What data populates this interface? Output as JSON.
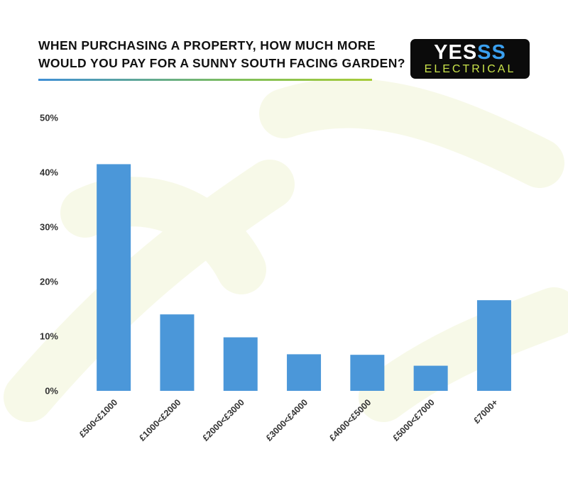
{
  "header": {
    "title": "WHEN PURCHASING A PROPERTY, HOW MUCH MORE WOULD YOU PAY FOR A SUNNY SOUTH FACING GARDEN?"
  },
  "logo": {
    "top_white": "YES",
    "top_blue": "SS",
    "bottom": "ELECTRICAL"
  },
  "colors": {
    "bar": "#4b97d9",
    "grid": "#e4ecc4",
    "baseline_left": "#3f8fd6",
    "baseline_right": "#8fbf3a",
    "logo_blue": "#3aa0f0",
    "logo_green": "#c9e24a"
  },
  "chart_data": {
    "type": "bar",
    "title": "WHEN PURCHASING A PROPERTY, HOW MUCH MORE WOULD YOU PAY FOR A SUNNY SOUTH FACING GARDEN?",
    "xlabel": "",
    "ylabel": "",
    "categories": [
      "£500<£1000",
      "£1000<£2000",
      "£2000<£3000",
      "£3000<£4000",
      "£4000<£5000",
      "£5000<£7000",
      "£7000+"
    ],
    "values": [
      41.5,
      14.0,
      9.8,
      6.7,
      6.6,
      4.6,
      16.6
    ],
    "ylim": [
      0,
      50
    ],
    "yticks": [
      0,
      10,
      20,
      30,
      40,
      50
    ],
    "ytick_labels": [
      "0%",
      "10%",
      "20%",
      "30%",
      "40%",
      "50%"
    ],
    "grid": true,
    "legend": "none"
  }
}
